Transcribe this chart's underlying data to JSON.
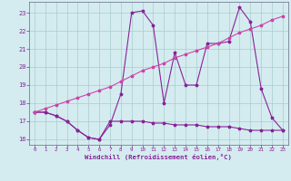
{
  "background_color": "#d4ecef",
  "grid_color": "#a8cccc",
  "line_color": "#882299",
  "line_color2": "#cc44aa",
  "xlim": [
    -0.5,
    23.5
  ],
  "ylim": [
    15.7,
    23.6
  ],
  "xlabel": "Windchill (Refroidissement éolien,°C)",
  "yticks": [
    16,
    17,
    18,
    19,
    20,
    21,
    22,
    23
  ],
  "xticks": [
    0,
    1,
    2,
    3,
    4,
    5,
    6,
    7,
    8,
    9,
    10,
    11,
    12,
    13,
    14,
    15,
    16,
    17,
    18,
    19,
    20,
    21,
    22,
    23
  ],
  "line1_x": [
    0,
    1,
    2,
    3,
    4,
    5,
    6,
    7,
    8,
    9,
    10,
    11,
    12,
    13,
    14,
    15,
    16,
    17,
    18,
    19,
    20,
    21,
    22,
    23
  ],
  "line1_y": [
    17.5,
    17.5,
    17.3,
    17.0,
    16.5,
    16.1,
    16.0,
    16.8,
    18.5,
    23.0,
    23.1,
    22.3,
    18.0,
    20.8,
    19.0,
    19.0,
    21.3,
    21.3,
    21.4,
    23.3,
    22.5,
    18.8,
    17.2,
    16.5
  ],
  "line2_x": [
    0,
    1,
    2,
    3,
    4,
    5,
    6,
    7,
    8,
    9,
    10,
    11,
    12,
    13,
    14,
    15,
    16,
    17,
    18,
    19,
    20,
    21,
    22,
    23
  ],
  "line2_y": [
    17.5,
    17.5,
    17.3,
    17.0,
    16.5,
    16.1,
    16.0,
    17.0,
    17.0,
    17.0,
    17.0,
    16.9,
    16.9,
    16.8,
    16.8,
    16.8,
    16.7,
    16.7,
    16.7,
    16.6,
    16.5,
    16.5,
    16.5,
    16.5
  ],
  "line3_x": [
    0,
    1,
    2,
    3,
    4,
    5,
    6,
    7,
    8,
    9,
    10,
    11,
    12,
    13,
    14,
    15,
    16,
    17,
    18,
    19,
    20,
    21,
    22,
    23
  ],
  "line3_y": [
    17.5,
    17.7,
    17.9,
    18.1,
    18.3,
    18.5,
    18.7,
    18.9,
    19.2,
    19.5,
    19.8,
    20.0,
    20.2,
    20.5,
    20.7,
    20.9,
    21.1,
    21.3,
    21.6,
    21.9,
    22.1,
    22.3,
    22.6,
    22.8
  ]
}
